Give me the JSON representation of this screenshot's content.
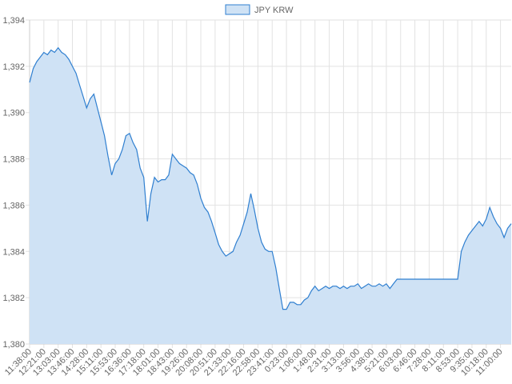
{
  "chart_data": {
    "type": "area",
    "categories": [
      "11:38:00",
      null,
      null,
      null,
      "12:21:00",
      null,
      null,
      null,
      "13:03:00",
      null,
      null,
      null,
      "13:46:00",
      null,
      null,
      null,
      "14:28:00",
      null,
      null,
      null,
      "15:11:00",
      null,
      null,
      null,
      "15:53:00",
      null,
      null,
      null,
      "16:36:00",
      null,
      null,
      null,
      "17:18:00",
      null,
      null,
      null,
      "18:01:00",
      null,
      null,
      null,
      "18:43:00",
      null,
      null,
      null,
      "19:26:00",
      null,
      null,
      null,
      "20:08:00",
      null,
      null,
      null,
      "20:51:00",
      null,
      null,
      null,
      "21:33:00",
      null,
      null,
      null,
      "22:16:00",
      null,
      null,
      null,
      "22:58:00",
      null,
      null,
      null,
      "23:41:00",
      null,
      null,
      null,
      "0:23:00",
      null,
      null,
      null,
      "1:06:00",
      null,
      null,
      null,
      "1:48:00",
      null,
      null,
      null,
      "2:31:00",
      null,
      null,
      null,
      "3:13:00",
      null,
      null,
      null,
      "3:56:00",
      null,
      null,
      null,
      "4:38:00",
      null,
      null,
      null,
      "5:21:00",
      null,
      null,
      null,
      "6:03:00",
      null,
      null,
      null,
      "6:46:00",
      null,
      null,
      null,
      "7:28:00",
      null,
      null,
      null,
      "8:11:00",
      null,
      null,
      null,
      "8:53:00",
      null,
      null,
      null,
      "9:35:00",
      null,
      null,
      null,
      "10:18:00",
      null,
      null,
      null,
      "11:00:00",
      null,
      null,
      null
    ],
    "series": [
      {
        "name": "JPY KRW",
        "color": "#2f7fd0",
        "fill": "#cfe2f5",
        "values": [
          1391.3,
          1391.9,
          1392.2,
          1392.4,
          1392.6,
          1392.5,
          1392.7,
          1392.6,
          1392.8,
          1392.6,
          1392.5,
          1392.3,
          1392.0,
          1391.7,
          1391.2,
          1390.7,
          1390.2,
          1390.6,
          1390.8,
          1390.2,
          1389.6,
          1389.0,
          1388.1,
          1387.3,
          1387.8,
          1388.0,
          1388.4,
          1389.0,
          1389.1,
          1388.7,
          1388.4,
          1387.6,
          1387.2,
          1385.3,
          1386.5,
          1387.2,
          1387.0,
          1387.1,
          1387.1,
          1387.3,
          1388.2,
          1388.0,
          1387.8,
          1387.7,
          1387.6,
          1387.4,
          1387.3,
          1386.9,
          1386.3,
          1385.9,
          1385.7,
          1385.3,
          1384.8,
          1384.3,
          1384.0,
          1383.8,
          1383.9,
          1384.0,
          1384.4,
          1384.7,
          1385.2,
          1385.7,
          1386.5,
          1385.8,
          1385.0,
          1384.4,
          1384.1,
          1384.0,
          1384.0,
          1383.3,
          1382.4,
          1381.5,
          1381.5,
          1381.8,
          1381.8,
          1381.7,
          1381.7,
          1381.9,
          1382.0,
          1382.3,
          1382.5,
          1382.3,
          1382.4,
          1382.5,
          1382.4,
          1382.5,
          1382.5,
          1382.4,
          1382.5,
          1382.4,
          1382.5,
          1382.5,
          1382.6,
          1382.4,
          1382.5,
          1382.6,
          1382.5,
          1382.5,
          1382.6,
          1382.5,
          1382.6,
          1382.4,
          1382.6,
          1382.8,
          1382.8,
          1382.8,
          1382.8,
          1382.8,
          1382.8,
          1382.8,
          1382.8,
          1382.8,
          1382.8,
          1382.8,
          1382.8,
          1382.8,
          1382.8,
          1382.8,
          1382.8,
          1382.8,
          1382.8,
          1384.0,
          1384.4,
          1384.7,
          1384.9,
          1385.1,
          1385.3,
          1385.1,
          1385.4,
          1385.9,
          1385.5,
          1385.2,
          1385.0,
          1384.6,
          1385.0,
          1385.2
        ]
      }
    ],
    "ylim": [
      1380,
      1394
    ],
    "yticks": [
      {
        "value": 1380,
        "label": "1,380"
      },
      {
        "value": 1382,
        "label": "1,382"
      },
      {
        "value": 1384,
        "label": "1,384"
      },
      {
        "value": 1386,
        "label": "1,386"
      },
      {
        "value": 1388,
        "label": "1,388"
      },
      {
        "value": 1390,
        "label": "1,390"
      },
      {
        "value": 1392,
        "label": "1,392"
      },
      {
        "value": 1394,
        "label": "1,394"
      }
    ],
    "grid": true,
    "legend": "top"
  }
}
